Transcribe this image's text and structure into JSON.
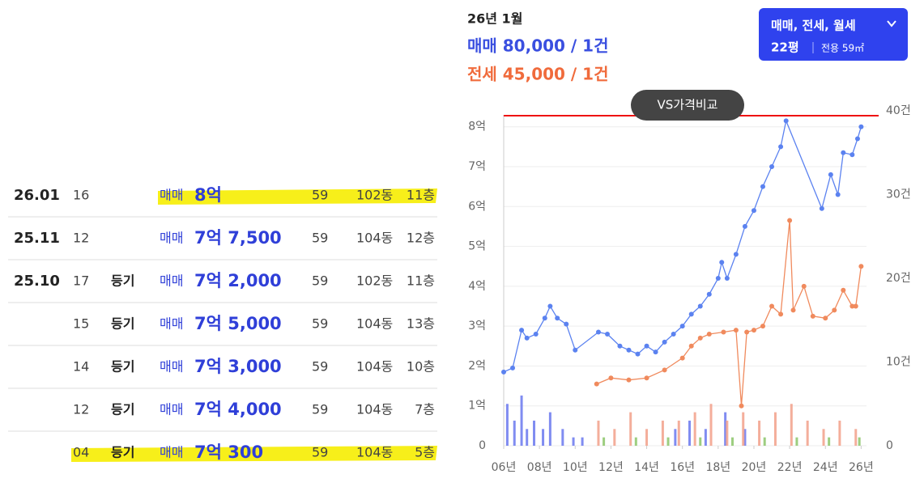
{
  "header": {
    "month": "26년 1월",
    "sale": "매매 80,000 / 1건",
    "jeonse": "전세 45,000 / 1건",
    "filter": "매매, 전세, 월세",
    "size": "22평",
    "area": "전용 59㎡",
    "compare": "VS가격비교"
  },
  "table": {
    "rows": [
      {
        "date": "26.01",
        "day": "16",
        "kind": "매매",
        "price": "8억",
        "area": "59",
        "dong": "102동",
        "floor": "11층"
      },
      {
        "date": "25.11",
        "day": "12",
        "kind": "매매",
        "price": "7억 7,500",
        "area": "59",
        "dong": "104동",
        "floor": "12층"
      },
      {
        "date": "25.10",
        "day": "17",
        "status": "등기",
        "kind": "매매",
        "price": "7억 2,000",
        "area": "59",
        "dong": "102동",
        "floor": "11층"
      },
      {
        "day": "15",
        "status": "등기",
        "kind": "매매",
        "price": "7억 5,000",
        "area": "59",
        "dong": "104동",
        "floor": "13층"
      },
      {
        "day": "14",
        "status": "등기",
        "kind": "매매",
        "price": "7억 3,000",
        "area": "59",
        "dong": "104동",
        "floor": "10층"
      },
      {
        "day": "12",
        "status": "등기",
        "kind": "매매",
        "price": "7억 4,000",
        "area": "59",
        "dong": "104동",
        "floor": "7층"
      },
      {
        "day": "04",
        "status": "등기",
        "kind": "매매",
        "price": "7억 300",
        "area": "59",
        "dong": "104동",
        "floor": "5층"
      }
    ]
  },
  "chart_data": {
    "type": "line",
    "grid": true,
    "xlim": [
      2006,
      2026.3
    ],
    "xticks": [
      {
        "value": 2006,
        "label": "06년"
      },
      {
        "value": 2008,
        "label": "08년"
      },
      {
        "value": 2010,
        "label": "10년"
      },
      {
        "value": 2012,
        "label": "12년"
      },
      {
        "value": 2014,
        "label": "14년"
      },
      {
        "value": 2016,
        "label": "16년"
      },
      {
        "value": 2018,
        "label": "18년"
      },
      {
        "value": 2020,
        "label": "20년"
      },
      {
        "value": 2022,
        "label": "22년"
      },
      {
        "value": 2024,
        "label": "24년"
      },
      {
        "value": 2026,
        "label": "26년"
      }
    ],
    "ylim": [
      0,
      8.4
    ],
    "yticks": [
      0,
      {
        "value": 1,
        "label": "1억"
      },
      {
        "value": 2,
        "label": "2억"
      },
      {
        "value": 3,
        "label": "3억"
      },
      {
        "value": 4,
        "label": "4억"
      },
      {
        "value": 5,
        "label": "5억"
      },
      {
        "value": 6,
        "label": "6억"
      },
      {
        "value": 7,
        "label": "7억"
      },
      {
        "value": 8,
        "label": "8억"
      }
    ],
    "y2lim": [
      0,
      40
    ],
    "y2ticks": [
      0,
      {
        "value": 10,
        "label": "10건"
      },
      {
        "value": 20,
        "label": "20건"
      },
      {
        "value": 30,
        "label": "30건"
      },
      {
        "value": 40,
        "label": "40건"
      }
    ],
    "series": [
      {
        "name": "매매",
        "color": "#5b82f0",
        "x": [
          2006,
          2006.5,
          2007,
          2007.3,
          2007.8,
          2008.3,
          2008.6,
          2009,
          2009.5,
          2010,
          2011.3,
          2011.8,
          2012.5,
          2013,
          2013.5,
          2014,
          2014.5,
          2015,
          2015.5,
          2016,
          2016.5,
          2017,
          2017.5,
          2018,
          2018.2,
          2018.5,
          2019,
          2019.5,
          2020,
          2020.5,
          2021,
          2021.5,
          2021.8,
          2023.8,
          2024.3,
          2024.7,
          2025,
          2025.5,
          2025.8,
          2026
        ],
        "values": [
          1.85,
          1.95,
          2.9,
          2.7,
          2.8,
          3.2,
          3.5,
          3.2,
          3.05,
          2.4,
          2.85,
          2.8,
          2.5,
          2.4,
          2.3,
          2.5,
          2.35,
          2.6,
          2.8,
          3.0,
          3.3,
          3.5,
          3.8,
          4.2,
          4.6,
          4.2,
          4.8,
          5.5,
          5.9,
          6.5,
          7.0,
          7.5,
          8.15,
          5.95,
          6.8,
          6.3,
          7.35,
          7.3,
          7.7,
          8.0
        ]
      },
      {
        "name": "전세",
        "color": "#f08a5d",
        "x": [
          2011.2,
          2012,
          2013,
          2014,
          2015,
          2016,
          2016.5,
          2017,
          2017.5,
          2018.3,
          2019,
          2019.3,
          2019.6,
          2020,
          2020.5,
          2021,
          2021.5,
          2022,
          2022.2,
          2022.8,
          2023.3,
          2024,
          2024.5,
          2025,
          2025.5,
          2025.7,
          2026
        ],
        "values": [
          1.55,
          1.7,
          1.65,
          1.7,
          1.9,
          2.2,
          2.5,
          2.7,
          2.8,
          2.85,
          2.9,
          1.0,
          2.85,
          2.9,
          3.0,
          3.5,
          3.3,
          5.65,
          3.4,
          4.0,
          3.25,
          3.2,
          3.4,
          3.9,
          3.5,
          3.5,
          4.5
        ]
      },
      {
        "type": "bar",
        "axis": "y2",
        "color": "#6a78ee",
        "x": [
          2006.2,
          2006.6,
          2007,
          2007.3,
          2007.7,
          2008.2,
          2008.6,
          2009.3,
          2009.9,
          2010.4,
          2015.6,
          2016.4,
          2017.3,
          2018.4,
          2019.5
        ],
        "values": [
          5,
          3,
          6,
          2,
          3,
          2,
          4,
          2,
          1,
          1,
          2,
          3,
          2,
          4,
          2
        ]
      },
      {
        "type": "bar",
        "axis": "y2",
        "color": "#f2a08a",
        "x": [
          2011.3,
          2012.2,
          2013.1,
          2014,
          2014.9,
          2015.8,
          2016.7,
          2017.6,
          2018.5,
          2019.4,
          2020.3,
          2021.2,
          2022.1,
          2023,
          2023.9,
          2024.8,
          2025.7
        ],
        "values": [
          3,
          2,
          4,
          2,
          3,
          3,
          4,
          5,
          3,
          4,
          3,
          4,
          5,
          3,
          2,
          3,
          2
        ]
      },
      {
        "type": "bar",
        "axis": "y2",
        "color": "#8cc66a",
        "x": [
          2011.6,
          2013.4,
          2015.2,
          2017,
          2018.8,
          2020.6,
          2022.4,
          2024.2,
          2025.9
        ],
        "values": [
          1,
          1,
          1,
          1,
          1,
          1,
          1,
          1,
          1
        ]
      }
    ]
  }
}
